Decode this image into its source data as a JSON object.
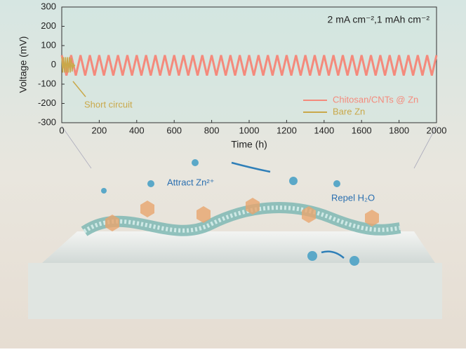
{
  "chart_data": {
    "type": "line",
    "annotation": "2 mA cm⁻²,1 mAh cm⁻²",
    "short_circuit_label": "Short circuit",
    "x_label": "Time (h)",
    "y_label": "Voltage (mV)",
    "xlim": [
      0,
      2000
    ],
    "xticks": [
      0,
      200,
      400,
      600,
      800,
      1000,
      1200,
      1400,
      1600,
      1800,
      2000
    ],
    "ylim": [
      -300,
      300
    ],
    "yticks": [
      -300,
      -200,
      -100,
      0,
      100,
      200,
      300
    ],
    "legend": "lower right",
    "series": [
      {
        "name": "Chitosan/CNTs @ Zn",
        "color": "#f48a7c",
        "x": [
          0,
          25,
          50,
          75,
          100,
          125,
          150,
          175,
          200,
          225,
          250,
          275,
          300,
          325,
          350,
          375,
          400,
          425,
          450,
          475,
          500,
          525,
          550,
          575,
          600,
          625,
          650,
          675,
          700,
          725,
          750,
          775,
          800,
          825,
          850,
          875,
          900,
          925,
          950,
          975,
          1000,
          1025,
          1050,
          1075,
          1100,
          1125,
          1150,
          1175,
          1200,
          1225,
          1250,
          1275,
          1300,
          1325,
          1350,
          1375,
          1400,
          1425,
          1450,
          1475,
          1500,
          1525,
          1550,
          1575,
          1600,
          1625,
          1650,
          1675,
          1700,
          1725,
          1750,
          1775,
          1800,
          1825,
          1850,
          1875,
          1900,
          1925,
          1950,
          1975,
          2000
        ],
        "values": [
          50,
          -55,
          50,
          -55,
          50,
          -55,
          50,
          -55,
          50,
          -55,
          50,
          -55,
          50,
          -55,
          50,
          -55,
          50,
          -55,
          50,
          -55,
          50,
          -55,
          50,
          -55,
          50,
          -55,
          50,
          -55,
          50,
          -55,
          50,
          -55,
          50,
          -55,
          50,
          -55,
          50,
          -55,
          50,
          -55,
          50,
          -55,
          50,
          -55,
          50,
          -55,
          50,
          -55,
          50,
          -55,
          50,
          -55,
          50,
          -55,
          50,
          -55,
          50,
          -55,
          50,
          -55,
          50,
          -55,
          50,
          -55,
          50,
          -55,
          50,
          -55,
          50,
          -55,
          50,
          -55,
          50,
          -55,
          50,
          -55,
          50,
          -55,
          50,
          -55,
          50
        ]
      },
      {
        "name": "Bare Zn",
        "color": "#c9a84a",
        "x": [
          0,
          5,
          10,
          15,
          20,
          25,
          30,
          35,
          40,
          45,
          50,
          55,
          60,
          65,
          70
        ],
        "values": [
          40,
          -40,
          40,
          -40,
          40,
          -40,
          40,
          -40,
          40,
          -40,
          35,
          -35,
          10,
          -10,
          0
        ]
      }
    ]
  },
  "illustration": {
    "labels": [
      "Attract Zn²⁺",
      "Repel H₂O"
    ]
  }
}
